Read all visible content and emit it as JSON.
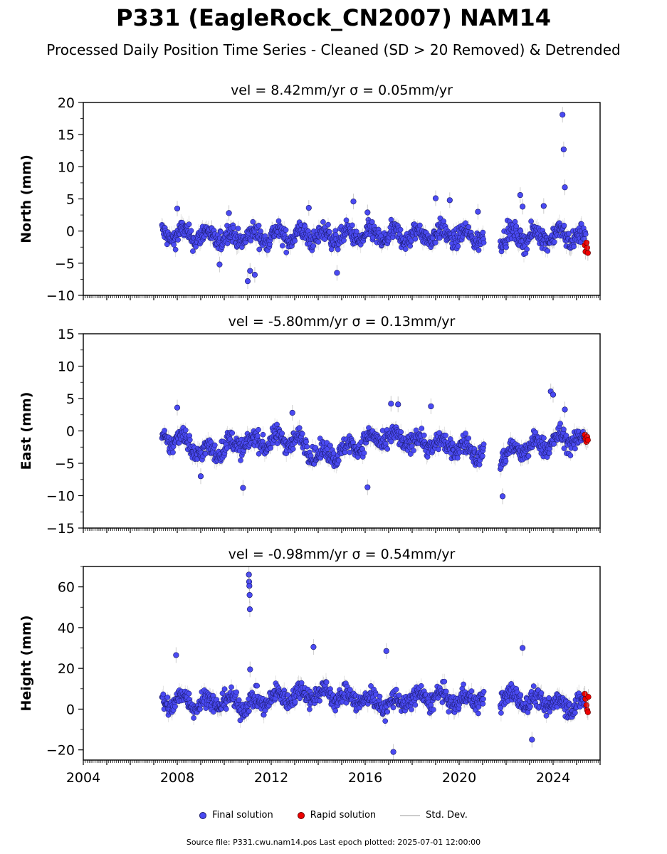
{
  "title": "P331 (EagleRock_CN2007) NAM14",
  "subtitle": "Processed Daily Position Time Series - Cleaned (SD > 20 Removed) & Detrended",
  "legend": {
    "final": "Final solution",
    "rapid": "Rapid solution",
    "std": "Std. Dev."
  },
  "footer": "Source file: P331.cwu.nam14.pos  Last epoch plotted: 2025-07-01 12:00:00",
  "colors": {
    "final": "#4a4af2",
    "rapid": "#ee0000",
    "std": "#999999"
  },
  "chart_data": [
    {
      "type": "scatter",
      "title": "vel = 8.42mm/yr   σ = 0.05mm/yr",
      "ylabel": "North (mm)",
      "xlim": [
        2004,
        2026
      ],
      "ylim": [
        -10,
        20
      ],
      "xticks": [
        "2004",
        "2008",
        "2012",
        "2016",
        "2020",
        "2024"
      ],
      "yticks": [
        -10,
        -5,
        0,
        5,
        10,
        15,
        20
      ],
      "grid": false,
      "data_range": [
        2007.35,
        2025.5
      ],
      "gap": [
        2021.05,
        2021.75
      ],
      "trend": {
        "x": [
          2007.4,
          2008.5,
          2010.0,
          2011.5,
          2013.0,
          2014.5,
          2016.0,
          2017.5,
          2019.0,
          2020.5,
          2022.0,
          2023.0,
          2024.5,
          2025.4
        ],
        "y": [
          -0.5,
          -0.6,
          -1.0,
          -0.8,
          -0.7,
          -0.8,
          -0.7,
          -0.8,
          -0.5,
          -0.9,
          -0.8,
          -0.9,
          -0.6,
          -1.2
        ]
      },
      "series": [
        {
          "name": "Final solution",
          "x": [
            2008.0,
            2009.8,
            2010.2,
            2011.0,
            2011.1,
            2011.3,
            2013.6,
            2014.8,
            2015.5,
            2016.1,
            2019.0,
            2019.6,
            2020.8,
            2022.6,
            2022.7,
            2023.6,
            2024.4,
            2024.45,
            2024.5
          ],
          "y": [
            3.5,
            -5.2,
            2.8,
            -7.8,
            -6.2,
            -6.8,
            3.6,
            -6.5,
            4.6,
            2.9,
            5.1,
            4.8,
            3.0,
            5.6,
            3.8,
            3.9,
            18.1,
            12.7,
            6.8
          ]
        },
        {
          "name": "Rapid solution",
          "x": [
            2025.35,
            2025.38,
            2025.42,
            2025.45,
            2025.48
          ],
          "y": [
            -2.2,
            -3.2,
            -1.8,
            -2.6,
            -3.4
          ]
        }
      ]
    },
    {
      "type": "scatter",
      "title": "vel = -5.80mm/yr   σ = 0.13mm/yr",
      "ylabel": "East (mm)",
      "xlim": [
        2004,
        2026
      ],
      "ylim": [
        -15,
        15
      ],
      "xticks": [
        "2004",
        "2008",
        "2012",
        "2016",
        "2020",
        "2024"
      ],
      "yticks": [
        -15,
        -10,
        -5,
        0,
        5,
        10,
        15
      ],
      "grid": false,
      "data_range": [
        2007.35,
        2025.5
      ],
      "gap": [
        2021.05,
        2021.75
      ],
      "trend": {
        "x": [
          2007.4,
          2008.2,
          2009.0,
          2010.5,
          2012.0,
          2013.0,
          2014.0,
          2015.0,
          2016.0,
          2017.0,
          2018.0,
          2019.0,
          2020.0,
          2021.0,
          2021.8,
          2023.0,
          2024.5,
          2025.4
        ],
        "y": [
          -1.5,
          -1.0,
          -3.5,
          -2.0,
          -1.5,
          -1.2,
          -3.8,
          -3.2,
          -1.5,
          -1.2,
          -1.5,
          -2.0,
          -2.5,
          -3.5,
          -3.8,
          -2.5,
          -1.2,
          -1.5
        ]
      },
      "series": [
        {
          "name": "Final solution",
          "x": [
            2008.0,
            2009.0,
            2010.8,
            2012.9,
            2016.1,
            2017.1,
            2017.4,
            2018.8,
            2021.85,
            2023.9,
            2024.0,
            2024.5
          ],
          "y": [
            3.6,
            -7.0,
            -8.8,
            2.8,
            -8.7,
            4.2,
            4.1,
            3.8,
            -10.1,
            6.1,
            5.6,
            3.3
          ]
        },
        {
          "name": "Rapid solution",
          "x": [
            2025.35,
            2025.38,
            2025.42,
            2025.45,
            2025.48
          ],
          "y": [
            -0.6,
            -1.2,
            -1.7,
            -0.9,
            -1.4
          ]
        }
      ]
    },
    {
      "type": "scatter",
      "title": "vel = -0.98mm/yr   σ = 0.54mm/yr",
      "ylabel": "Height (mm)",
      "xlim": [
        2004,
        2026
      ],
      "ylim": [
        -25,
        70
      ],
      "xticks": [
        "2004",
        "2008",
        "2012",
        "2016",
        "2020",
        "2024"
      ],
      "yticks": [
        -20,
        0,
        20,
        40,
        60
      ],
      "grid": false,
      "data_range": [
        2007.35,
        2025.5
      ],
      "gap": [
        2021.05,
        2021.75
      ],
      "trend": {
        "x": [
          2007.4,
          2008.0,
          2009.0,
          2010.0,
          2011.0,
          2012.0,
          2013.0,
          2014.0,
          2015.0,
          2016.0,
          2017.0,
          2018.0,
          2019.0,
          2020.0,
          2021.0,
          2022.0,
          2023.0,
          2024.0,
          2025.4
        ],
        "y": [
          2.0,
          5.0,
          3.0,
          4.0,
          2.0,
          5.0,
          7.0,
          8.0,
          6.0,
          5.0,
          2.0,
          5.0,
          6.0,
          4.0,
          6.0,
          6.0,
          4.0,
          3.0,
          2.0
        ]
      },
      "series": [
        {
          "name": "Final solution",
          "x": [
            2007.95,
            2011.05,
            2011.06,
            2011.07,
            2011.08,
            2011.09,
            2011.1,
            2013.8,
            2016.9,
            2017.2,
            2022.7,
            2023.1
          ],
          "y": [
            26.5,
            66.0,
            62.5,
            60.5,
            56.0,
            49.0,
            19.5,
            30.5,
            28.5,
            -21.0,
            30.0,
            -15.0
          ]
        },
        {
          "name": "Rapid solution",
          "x": [
            2025.35,
            2025.38,
            2025.42,
            2025.45,
            2025.48,
            2025.5
          ],
          "y": [
            7.5,
            5.0,
            2.0,
            -0.5,
            -1.5,
            6.0
          ]
        }
      ]
    }
  ]
}
